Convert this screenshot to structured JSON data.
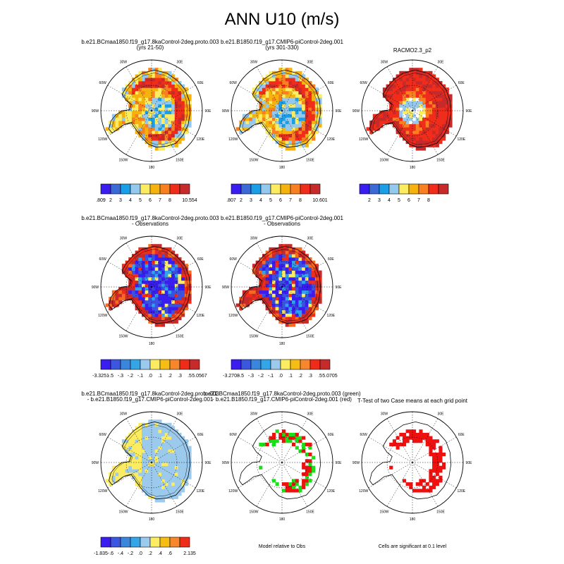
{
  "page": {
    "title": "ANN U10 (m/s)"
  },
  "lon_labels": {
    "n30w": "30W",
    "n30e": "30E",
    "n60w": "60W",
    "n60e": "60E",
    "n90w": "90W",
    "n90e": "90E",
    "n120w": "120W",
    "n120e": "120E",
    "n150w": "150W",
    "n150e": "150E",
    "n180": "180"
  },
  "colors": {
    "scale9": [
      "#3a1ef0",
      "#3b6ad7",
      "#1a9ee8",
      "#94c8ec",
      "#fbec62",
      "#f6b20d",
      "#f98020",
      "#f02c1a",
      "#c62a2a"
    ],
    "scale12": [
      "#3a1ef0",
      "#3b52e0",
      "#3c7ed8",
      "#2ea2ea",
      "#6ec0ec",
      "#a8d8f2",
      "#fbec62",
      "#f6c81a",
      "#f69a18",
      "#f86a20",
      "#f02c1a",
      "#c62a2a"
    ],
    "scale10": [
      "#3a1ef0",
      "#3b56df",
      "#3a86dc",
      "#34a6e8",
      "#9ccaed",
      "#fbec62",
      "#f6bd14",
      "#f8862c",
      "#ef2c1a",
      "#c62a2a"
    ],
    "significant": "#ef1010",
    "model_higher": "#19e019"
  },
  "chart_data": [
    {
      "type": "heatmap",
      "panel": "p1",
      "title": "b.e21.BCmaa1850.f19_g17.8kaControl-2deg.proto.003",
      "subtitle": "(yrs 21-50)",
      "colorbar": {
        "min": ".809",
        "max": "10.554",
        "levels": [
          2,
          3,
          4,
          5,
          6,
          7,
          8
        ]
      }
    },
    {
      "type": "heatmap",
      "panel": "p2",
      "title": "b.e21.B1850.f19_g17.CMIP6-piControl-2deg.001",
      "subtitle": "(yrs 301-330)",
      "colorbar": {
        "min": ".807",
        "max": "10.601",
        "levels": [
          2,
          3,
          4,
          5,
          6,
          7,
          8
        ]
      }
    },
    {
      "type": "heatmap",
      "panel": "p3",
      "title": "RACMO2.3_p2",
      "colorbar": {
        "levels": [
          2,
          3,
          4,
          5,
          6,
          7,
          8
        ]
      }
    },
    {
      "type": "heatmap",
      "panel": "p4",
      "title": "b.e21.BCmaa1850.f19_g17.8kaControl-2deg.proto.003",
      "subtitle": "- Observations",
      "colorbar": {
        "min": "-3.3251",
        "max": "5.0567",
        "levels": [
          "-.5",
          "-.3",
          "-.2",
          "-.1",
          ".0",
          ".1",
          ".2",
          ".3",
          ".5"
        ]
      }
    },
    {
      "type": "heatmap",
      "panel": "p5",
      "title": "b.e21.B1850.f19_g17.CMIP6-piControl-2deg.001",
      "subtitle": "- Observations",
      "colorbar": {
        "min": "-3.2708",
        "max": "5.0705",
        "levels": [
          "-.5",
          "-.3",
          "-.2",
          "-.1",
          ".0",
          ".1",
          ".2",
          ".3",
          ".5"
        ]
      }
    },
    {
      "type": "heatmap",
      "panel": "p7",
      "title": "b.e21.BCmaa1850.f19_g17.8kaControl-2deg.proto.003",
      "subtitle": "- b.e21.B1850.f19_g17.CMIP6-piControl-2deg.001",
      "colorbar": {
        "min": "-1.835",
        "max": "2.135",
        "levels": [
          "-.6",
          "-.4",
          "-.2",
          ".0",
          ".2",
          ".4",
          ".6"
        ]
      }
    },
    {
      "type": "heatmap",
      "panel": "p8",
      "title": "b.e21.BCmaa1850.f19_g17.8kaControl-2deg.proto.003 (green)",
      "subtitle": "- b.e21.B1850.f19_g17.CMIP6-piControl-2deg.001 (red)",
      "footer": "Model relative to Obs"
    },
    {
      "type": "heatmap",
      "panel": "p9",
      "title": "T-Test of two Case means at each grid point",
      "footer": "Cells are significant at 0.1 level"
    }
  ]
}
